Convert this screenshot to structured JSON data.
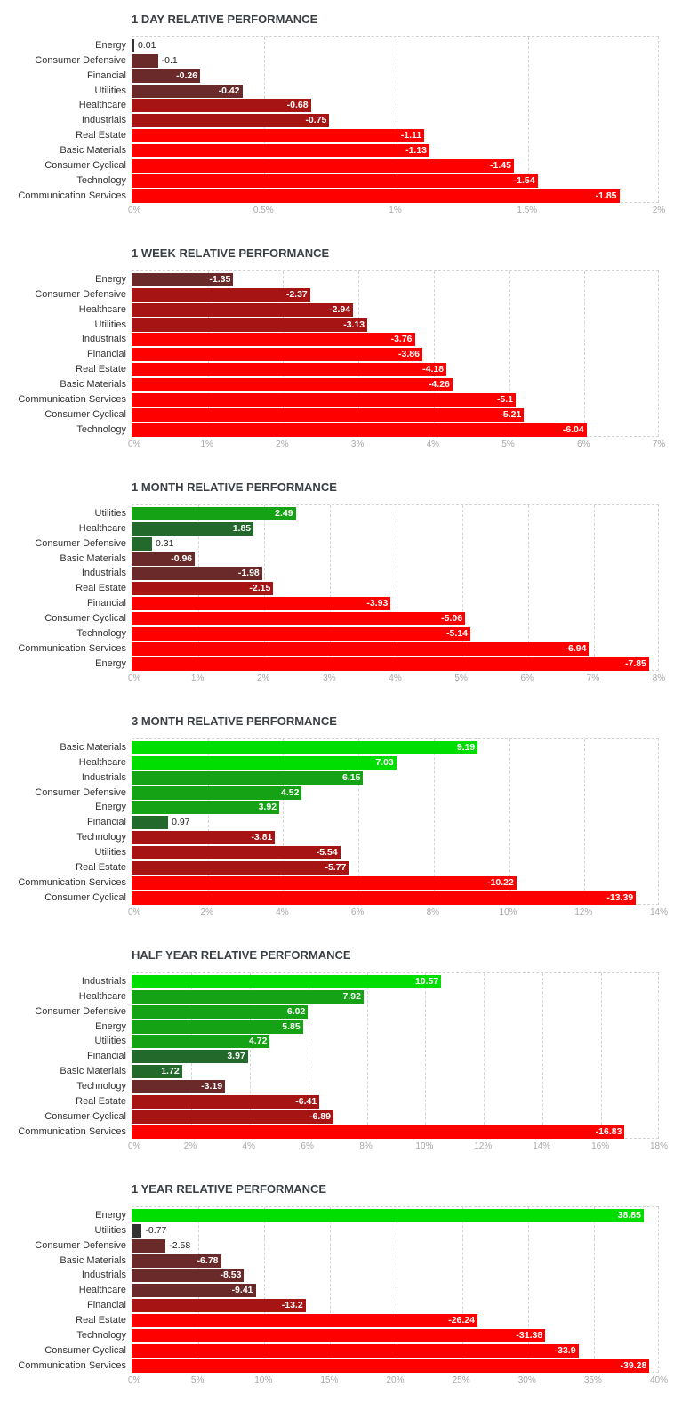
{
  "chart_data": [
    {
      "type": "bar",
      "orientation": "horizontal",
      "title": "1 DAY RELATIVE PERFORMANCE",
      "categories": [
        "Energy",
        "Consumer Defensive",
        "Financial",
        "Utilities",
        "Healthcare",
        "Industrials",
        "Real Estate",
        "Basic Materials",
        "Consumer Cyclical",
        "Technology",
        "Communication Services"
      ],
      "values": [
        "0.01",
        "-0.1",
        "-0.26",
        "-0.42",
        "-0.68",
        "-0.75",
        "-1.11",
        "-1.13",
        "-1.45",
        "-1.54",
        "-1.85"
      ],
      "xmax": 2,
      "xticks": [
        "0%",
        "0.5%",
        "1%",
        "1.5%",
        "2%"
      ]
    },
    {
      "type": "bar",
      "orientation": "horizontal",
      "title": "1 WEEK RELATIVE PERFORMANCE",
      "categories": [
        "Energy",
        "Consumer Defensive",
        "Healthcare",
        "Utilities",
        "Industrials",
        "Financial",
        "Real Estate",
        "Basic Materials",
        "Communication Services",
        "Consumer Cyclical",
        "Technology"
      ],
      "values": [
        "-1.35",
        "-2.37",
        "-2.94",
        "-3.13",
        "-3.76",
        "-3.86",
        "-4.18",
        "-4.26",
        "-5.1",
        "-5.21",
        "-6.04"
      ],
      "xmax": 7,
      "xticks": [
        "0%",
        "1%",
        "2%",
        "3%",
        "4%",
        "5%",
        "6%",
        "7%"
      ]
    },
    {
      "type": "bar",
      "orientation": "horizontal",
      "title": "1 MONTH RELATIVE PERFORMANCE",
      "categories": [
        "Utilities",
        "Healthcare",
        "Consumer Defensive",
        "Basic Materials",
        "Industrials",
        "Real Estate",
        "Financial",
        "Consumer Cyclical",
        "Technology",
        "Communication Services",
        "Energy"
      ],
      "values": [
        "2.49",
        "1.85",
        "0.31",
        "-0.96",
        "-1.98",
        "-2.15",
        "-3.93",
        "-5.06",
        "-5.14",
        "-6.94",
        "-7.85"
      ],
      "xmax": 8,
      "xticks": [
        "0%",
        "1%",
        "2%",
        "3%",
        "4%",
        "5%",
        "6%",
        "7%",
        "8%"
      ]
    },
    {
      "type": "bar",
      "orientation": "horizontal",
      "title": "3 MONTH RELATIVE PERFORMANCE",
      "categories": [
        "Basic Materials",
        "Healthcare",
        "Industrials",
        "Consumer Defensive",
        "Energy",
        "Financial",
        "Technology",
        "Utilities",
        "Real Estate",
        "Communication Services",
        "Consumer Cyclical"
      ],
      "values": [
        "9.19",
        "7.03",
        "6.15",
        "4.52",
        "3.92",
        "0.97",
        "-3.81",
        "-5.54",
        "-5.77",
        "-10.22",
        "-13.39"
      ],
      "xmax": 14,
      "xticks": [
        "0%",
        "2%",
        "4%",
        "6%",
        "8%",
        "10%",
        "12%",
        "14%"
      ]
    },
    {
      "type": "bar",
      "orientation": "horizontal",
      "title": "HALF YEAR RELATIVE PERFORMANCE",
      "categories": [
        "Industrials",
        "Healthcare",
        "Consumer Defensive",
        "Energy",
        "Utilities",
        "Financial",
        "Basic Materials",
        "Technology",
        "Real Estate",
        "Consumer Cyclical",
        "Communication Services"
      ],
      "values": [
        "10.57",
        "7.92",
        "6.02",
        "5.85",
        "4.72",
        "3.97",
        "1.72",
        "-3.19",
        "-6.41",
        "-6.89",
        "-16.83"
      ],
      "xmax": 18,
      "xticks": [
        "0%",
        "2%",
        "4%",
        "6%",
        "8%",
        "10%",
        "12%",
        "14%",
        "16%",
        "18%"
      ]
    },
    {
      "type": "bar",
      "orientation": "horizontal",
      "title": "1 YEAR RELATIVE PERFORMANCE",
      "categories": [
        "Energy",
        "Utilities",
        "Consumer Defensive",
        "Basic Materials",
        "Industrials",
        "Healthcare",
        "Financial",
        "Real Estate",
        "Technology",
        "Consumer Cyclical",
        "Communication Services"
      ],
      "values": [
        "38.85",
        "-0.77",
        "-2.58",
        "-6.78",
        "-8.53",
        "-9.41",
        "-13.2",
        "-26.24",
        "-31.38",
        "-33.9",
        "-39.28"
      ],
      "xmax": 40,
      "xticks": [
        "0%",
        "5%",
        "10%",
        "15%",
        "20%",
        "25%",
        "30%",
        "35%",
        "40%"
      ]
    }
  ],
  "colors": {
    "strong_positive": "#00dd00",
    "medium_positive": "#15a315",
    "weak_positive": "#23692b",
    "neutral": "#333333",
    "weak_negative": "#6a2a2a",
    "medium_negative": "#a61414",
    "strong_negative": "#ff0000"
  }
}
